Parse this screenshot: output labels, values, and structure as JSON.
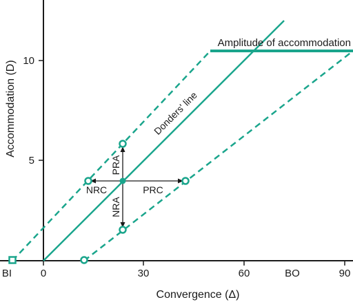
{
  "colors": {
    "teal": "#1aa58c",
    "axis": "#1a1a1a",
    "background": "#ffffff"
  },
  "axes": {
    "x_label": "Convergence (Δ)",
    "y_label": "Accommodation (D)",
    "x_ticks": [
      "0",
      "30",
      "60",
      "90"
    ],
    "x_extra_labels": {
      "base_in": "BI",
      "base_out": "BO"
    },
    "y_ticks": [
      "5",
      "10"
    ]
  },
  "annotations": {
    "amplitude": "Amplitude of accommodation",
    "donders": "Donders' line",
    "pra": "PRA",
    "nra": "NRA",
    "nrc": "NRC",
    "prc": "PRC"
  }
}
